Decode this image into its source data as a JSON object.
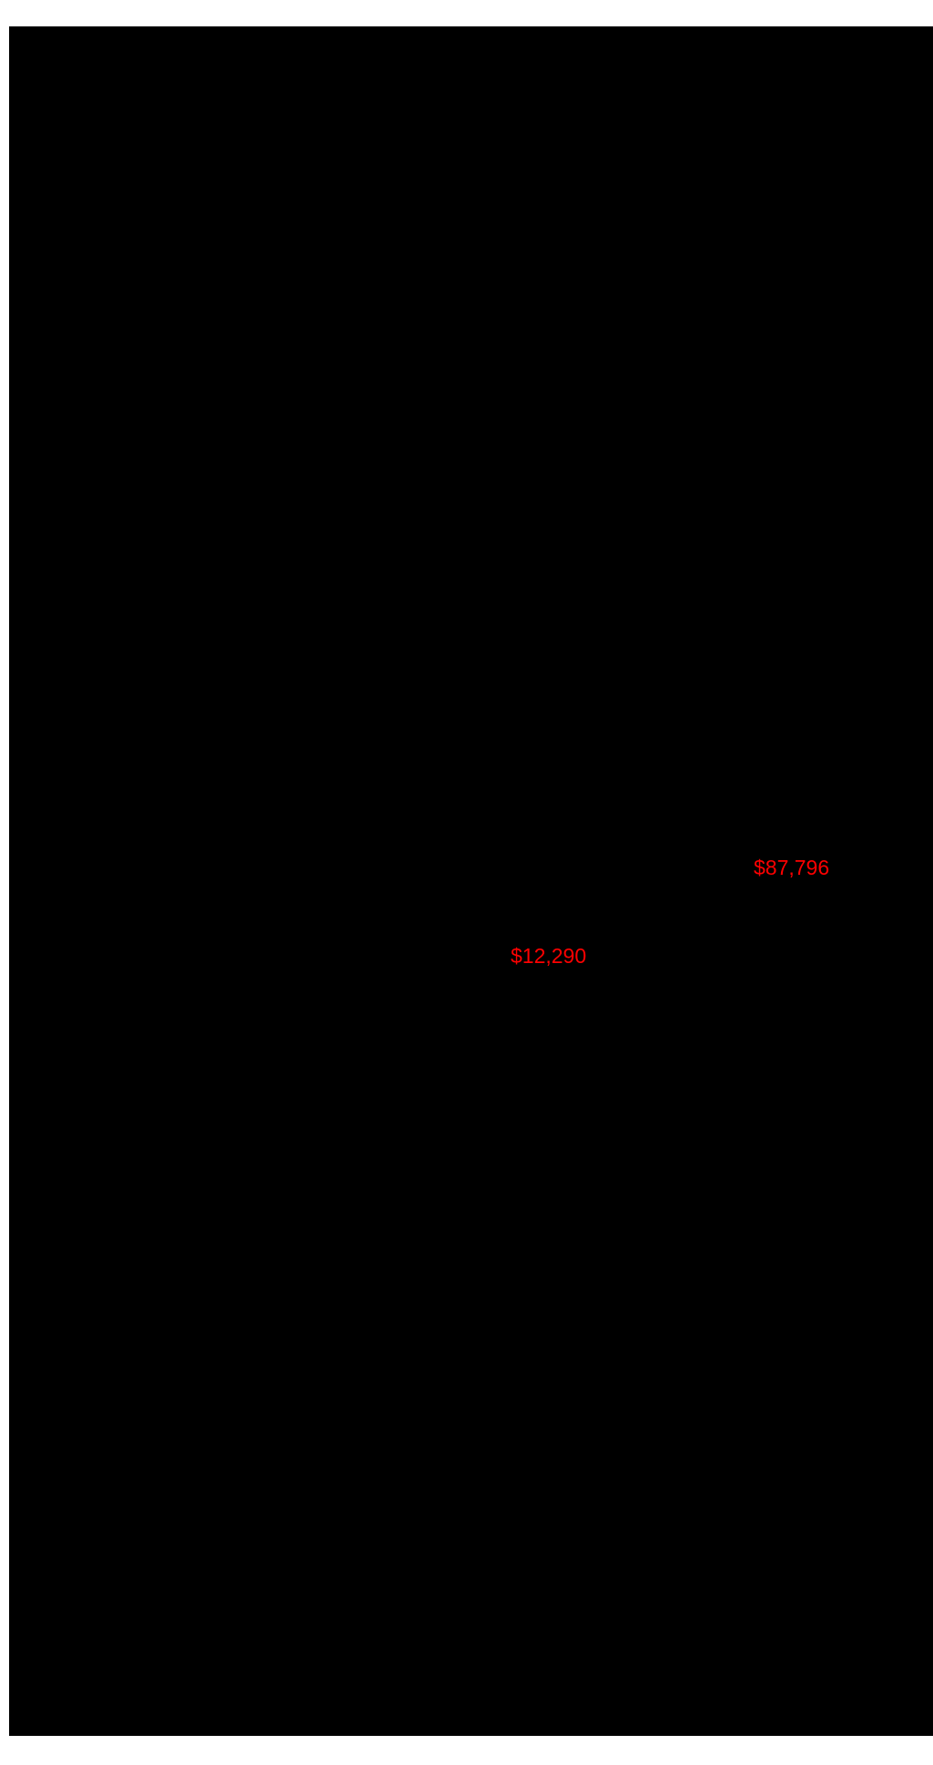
{
  "page": {
    "background_color": "#ffffff"
  },
  "screen": {
    "background_color": "#000000"
  },
  "annotations": [
    {
      "label": "$87,796",
      "color": "#ff0000"
    },
    {
      "label": "$12,290",
      "color": "#ff0000"
    }
  ]
}
